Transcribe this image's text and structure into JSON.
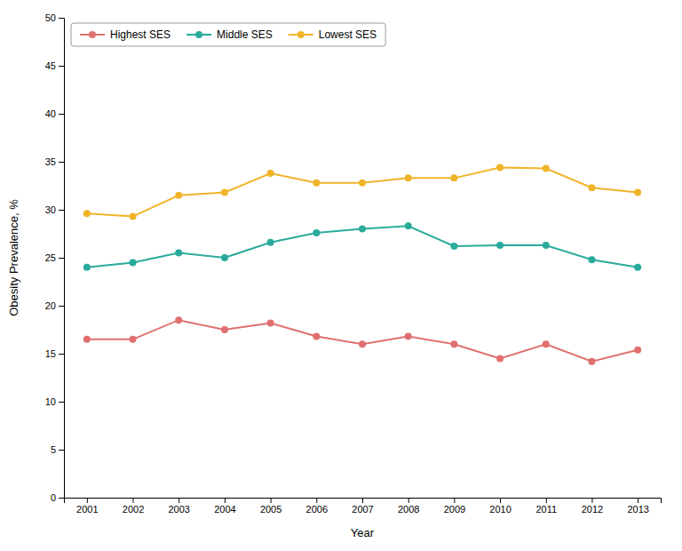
{
  "chart_data": {
    "type": "line",
    "xlabel": "Year",
    "ylabel": "Obesity Prevalence, %",
    "x": [
      2001,
      2002,
      2003,
      2004,
      2005,
      2006,
      2007,
      2008,
      2009,
      2010,
      2011,
      2012,
      2013
    ],
    "xlim": [
      2000.5,
      2013.5
    ],
    "xticks": [
      2001,
      2002,
      2003,
      2004,
      2005,
      2006,
      2007,
      2008,
      2009,
      2010,
      2011,
      2012,
      2013
    ],
    "ylim": [
      0,
      50
    ],
    "yticks": [
      0,
      5,
      10,
      15,
      20,
      25,
      30,
      35,
      40,
      45,
      50
    ],
    "grid": false,
    "legend": "upper left",
    "marker": "circle",
    "series": [
      {
        "name": "Highest SES",
        "color": "#e07070",
        "values": [
          16.5,
          16.5,
          18.5,
          17.5,
          18.2,
          16.8,
          16.0,
          16.8,
          16.0,
          14.5,
          16.0,
          14.2,
          15.4
        ]
      },
      {
        "name": "Middle SES",
        "color": "#2aab9c",
        "values": [
          24.0,
          24.5,
          25.5,
          25.0,
          26.6,
          27.6,
          28.0,
          28.3,
          26.2,
          26.3,
          26.3,
          24.8,
          24.0
        ]
      },
      {
        "name": "Lowest SES",
        "color": "#f0b429",
        "values": [
          29.6,
          29.3,
          31.5,
          31.8,
          33.8,
          32.8,
          32.8,
          33.3,
          33.3,
          34.4,
          34.3,
          32.3,
          31.8
        ]
      }
    ]
  }
}
